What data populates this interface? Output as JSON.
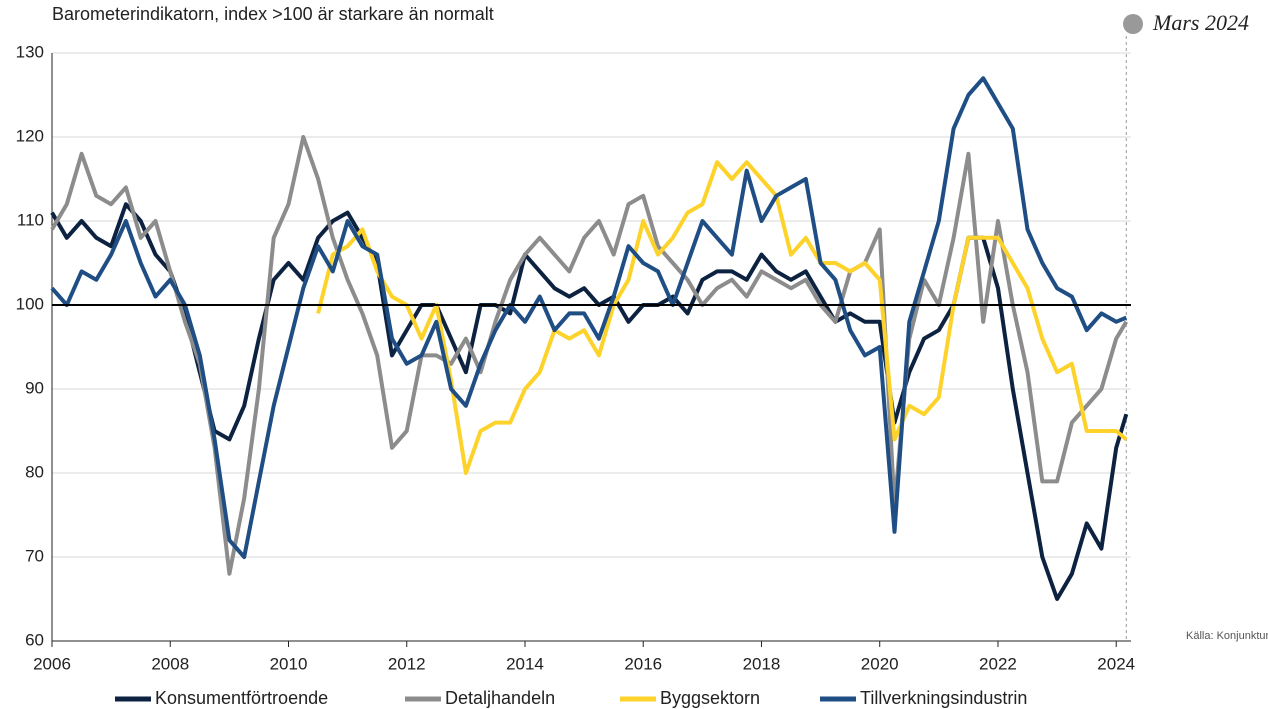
{
  "chart_data": {
    "type": "line",
    "title": "Barometerindikatorn, index >100 är starkare än normalt",
    "annotation": "Mars 2024",
    "source": "Källa: Konjunkturinstitutet",
    "x": [
      2006,
      2006.25,
      2006.5,
      2006.75,
      2007,
      2007.25,
      2007.5,
      2007.75,
      2008,
      2008.25,
      2008.5,
      2008.75,
      2009,
      2009.25,
      2009.5,
      2009.75,
      2010,
      2010.25,
      2010.5,
      2010.75,
      2011,
      2011.25,
      2011.5,
      2011.75,
      2012,
      2012.25,
      2012.5,
      2012.75,
      2013,
      2013.25,
      2013.5,
      2013.75,
      2014,
      2014.25,
      2014.5,
      2014.75,
      2015,
      2015.25,
      2015.5,
      2015.75,
      2016,
      2016.25,
      2016.5,
      2016.75,
      2017,
      2017.25,
      2017.5,
      2017.75,
      2018,
      2018.25,
      2018.5,
      2018.75,
      2019,
      2019.25,
      2019.5,
      2019.75,
      2020,
      2020.25,
      2020.5,
      2020.75,
      2021,
      2021.25,
      2021.5,
      2021.75,
      2022,
      2022.25,
      2022.5,
      2022.75,
      2023,
      2023.25,
      2023.5,
      2023.75,
      2024,
      2024.17
    ],
    "series": [
      {
        "name": "Konsumentförtroende",
        "color": "#0d2240",
        "values": [
          111,
          108,
          110,
          108,
          107,
          112,
          110,
          106,
          104,
          99,
          92,
          85,
          84,
          88,
          96,
          103,
          105,
          103,
          108,
          110,
          111,
          108,
          105,
          94,
          97,
          100,
          100,
          96,
          92,
          100,
          100,
          99,
          106,
          104,
          102,
          101,
          102,
          100,
          101,
          98,
          100,
          100,
          101,
          99,
          103,
          104,
          104,
          103,
          106,
          104,
          103,
          104,
          101,
          98,
          99,
          98,
          98,
          86,
          92,
          96,
          97,
          100,
          108,
          108,
          102,
          90,
          80,
          70,
          65,
          68,
          74,
          71,
          83,
          87
        ]
      },
      {
        "name": "Detaljhandeln",
        "color": "#8c8c8c",
        "values": [
          109,
          112,
          118,
          113,
          112,
          114,
          108,
          110,
          104,
          98,
          93,
          83,
          68,
          77,
          90,
          108,
          112,
          120,
          115,
          108,
          103,
          99,
          94,
          83,
          85,
          94,
          94,
          93,
          96,
          92,
          98,
          103,
          106,
          108,
          106,
          104,
          108,
          110,
          106,
          112,
          113,
          107,
          105,
          103,
          100,
          102,
          103,
          101,
          104,
          103,
          102,
          103,
          100,
          98,
          104,
          105,
          109,
          76,
          96,
          103,
          100,
          108,
          118,
          98,
          110,
          100,
          92,
          79,
          79,
          86,
          88,
          90,
          96,
          98
        ]
      },
      {
        "name": "Byggsektorn",
        "color": "#fdd32b",
        "values": [
          null,
          null,
          null,
          null,
          null,
          null,
          null,
          null,
          null,
          null,
          null,
          null,
          null,
          null,
          null,
          null,
          null,
          null,
          99,
          106,
          107,
          109,
          104,
          101,
          100,
          96,
          100,
          91,
          80,
          85,
          86,
          86,
          90,
          92,
          97,
          96,
          97,
          94,
          100,
          103,
          110,
          106,
          108,
          111,
          112,
          117,
          115,
          117,
          115,
          113,
          106,
          108,
          105,
          105,
          104,
          105,
          103,
          84,
          88,
          87,
          89,
          100,
          108,
          108,
          108,
          105,
          102,
          96,
          92,
          93,
          85,
          85,
          85,
          84
        ]
      },
      {
        "name": "Tillverkningsindustrin",
        "color": "#1f4e85",
        "values": [
          102,
          100,
          104,
          103,
          106,
          110,
          105,
          101,
          103,
          100,
          94,
          84,
          72,
          70,
          79,
          88,
          95,
          102,
          107,
          104,
          110,
          107,
          106,
          96,
          93,
          94,
          98,
          90,
          88,
          93,
          97,
          100,
          98,
          101,
          97,
          99,
          99,
          96,
          101,
          107,
          105,
          104,
          100,
          105,
          110,
          108,
          106,
          116,
          110,
          113,
          114,
          115,
          105,
          103,
          97,
          94,
          95,
          73,
          98,
          104,
          110,
          121,
          125,
          127,
          124,
          121,
          109,
          105,
          102,
          101,
          97,
          99,
          98,
          98.5
        ]
      }
    ],
    "xlim": [
      2006,
      2024.25
    ],
    "xticks": [
      2006,
      2008,
      2010,
      2012,
      2014,
      2016,
      2018,
      2020,
      2022,
      2024
    ],
    "ylim": [
      60,
      130
    ],
    "yticks": [
      60,
      70,
      80,
      90,
      100,
      110,
      120,
      130
    ],
    "reference_line": 100,
    "grid": true,
    "legend": "bottom"
  }
}
